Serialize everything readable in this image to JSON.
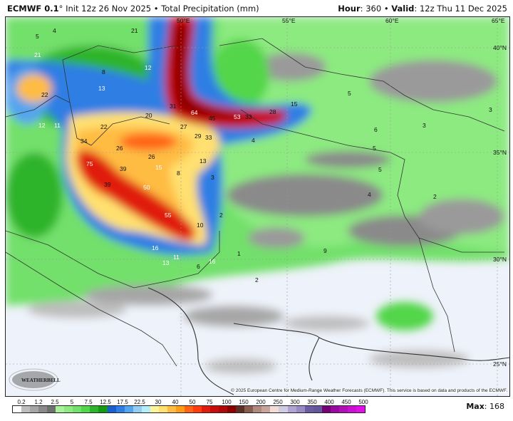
{
  "header": {
    "model": "ECMWF 0.1",
    "degree": "°",
    "init": "Init 12z 26 Nov 2025",
    "separator": "•",
    "product": "Total Precipitation (mm)",
    "hour_label": "Hour",
    "hour_value": ": 360",
    "valid_label": "Valid",
    "valid_value": ": 12z Thu 11 Dec 2025"
  },
  "map": {
    "coordinate_labels": [
      "50°E",
      "55°E",
      "60°E",
      "65°E",
      "40°N",
      "35°N",
      "30°N",
      "25°N"
    ],
    "value_labels": [
      "5",
      "4",
      "21",
      "21",
      "12",
      "11",
      "22",
      "13",
      "8",
      "12",
      "31",
      "64",
      "45",
      "53",
      "33",
      "28",
      "15",
      "20",
      "22",
      "27",
      "29",
      "33",
      "34",
      "26",
      "26",
      "75",
      "39",
      "39",
      "15",
      "13",
      "8",
      "4",
      "3",
      "50",
      "10",
      "55",
      "2",
      "16",
      "13",
      "11",
      "6",
      "16",
      "1",
      "5",
      "6",
      "5",
      "5",
      "3",
      "4",
      "3",
      "2",
      "9",
      "2"
    ],
    "watermark": "WeatherBELL",
    "copyright": "© 2025 European Centre for Medium-Range Weather Forecasts (ECMWF). This service is based on data and products of the ECMWF."
  },
  "colorbar": {
    "ticks": [
      "0.2",
      "1.2",
      "2.5",
      "5",
      "7.5",
      "12.5",
      "17.5",
      "22.5",
      "30",
      "40",
      "50",
      "75",
      "100",
      "150",
      "200",
      "250",
      "300",
      "350",
      "400",
      "450",
      "500"
    ],
    "colors": [
      "#ffffff",
      "#bdbdbd",
      "#a6a6a6",
      "#8a8a8a",
      "#707070",
      "#a8f29a",
      "#8cea80",
      "#72e06a",
      "#52d64a",
      "#2db42a",
      "#169a16",
      "#1a5ed2",
      "#2f7ee4",
      "#55a4ee",
      "#92cdf6",
      "#b4eef8",
      "#fff49c",
      "#ffe070",
      "#ffbc42",
      "#ff9c16",
      "#ff6416",
      "#ff3c10",
      "#e01c0c",
      "#c80c0c",
      "#b00808",
      "#8c0000",
      "#5c3024",
      "#8c5c4c",
      "#b08a80",
      "#c8a49a",
      "#f2dcd6",
      "#d2cce2",
      "#b2a4d2",
      "#9a8ac4",
      "#6c5ca4",
      "#64569e",
      "#760076",
      "#980aa0",
      "#b010b6",
      "#cc10d2",
      "#e010e6"
    ],
    "max_label": "Max",
    "max_value": ": 168"
  }
}
